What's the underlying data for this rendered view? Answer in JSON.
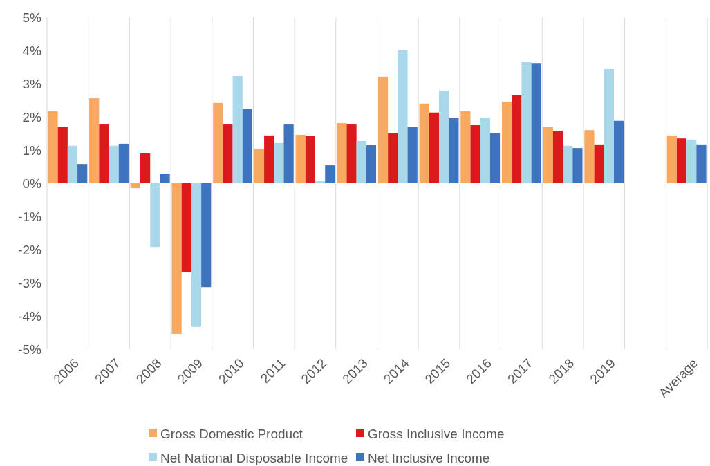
{
  "chart_data": {
    "type": "bar",
    "categories": [
      "2006",
      "2007",
      "2008",
      "2009",
      "2010",
      "2011",
      "2012",
      "2013",
      "2014",
      "2015",
      "2016",
      "2017",
      "2018",
      "2019",
      null,
      "Average"
    ],
    "series": [
      {
        "name": "Gross Domestic Product",
        "color": "#f9a85f",
        "values": [
          2.17,
          2.56,
          -0.15,
          -4.54,
          2.42,
          1.04,
          1.46,
          1.81,
          3.21,
          2.4,
          2.17,
          2.46,
          1.69,
          1.6,
          null,
          1.44
        ]
      },
      {
        "name": "Gross Inclusive Income",
        "color": "#dc1a1d",
        "values": [
          1.69,
          1.77,
          0.9,
          -2.67,
          1.77,
          1.44,
          1.42,
          1.77,
          1.52,
          2.13,
          1.75,
          2.65,
          1.58,
          1.17,
          null,
          1.35
        ]
      },
      {
        "name": "Net National Disposable Income",
        "color": "#a8d8ea",
        "values": [
          1.13,
          1.13,
          -1.92,
          -4.33,
          3.23,
          1.21,
          0.06,
          1.27,
          4.0,
          2.79,
          1.98,
          3.65,
          1.13,
          3.44,
          null,
          1.31
        ]
      },
      {
        "name": "Net Inclusive Income",
        "color": "#3e74bf",
        "values": [
          0.58,
          1.19,
          0.29,
          -3.13,
          2.25,
          1.77,
          0.54,
          1.15,
          1.69,
          1.96,
          1.52,
          3.62,
          1.06,
          1.88,
          null,
          1.17
        ]
      }
    ],
    "ylim": [
      -5,
      5
    ],
    "yticks": [
      {
        "value": -5,
        "label": "-5%"
      },
      {
        "value": -4,
        "label": "-4%"
      },
      {
        "value": -3,
        "label": "-3%"
      },
      {
        "value": -2,
        "label": "-2%"
      },
      {
        "value": -1,
        "label": "-1%"
      },
      {
        "value": 0,
        "label": "0%"
      },
      {
        "value": 1,
        "label": "1%"
      },
      {
        "value": 2,
        "label": "2%"
      },
      {
        "value": 3,
        "label": "3%"
      },
      {
        "value": 4,
        "label": "4%"
      },
      {
        "value": 5,
        "label": "5%"
      }
    ],
    "grid": "x",
    "legend": "bottom"
  }
}
